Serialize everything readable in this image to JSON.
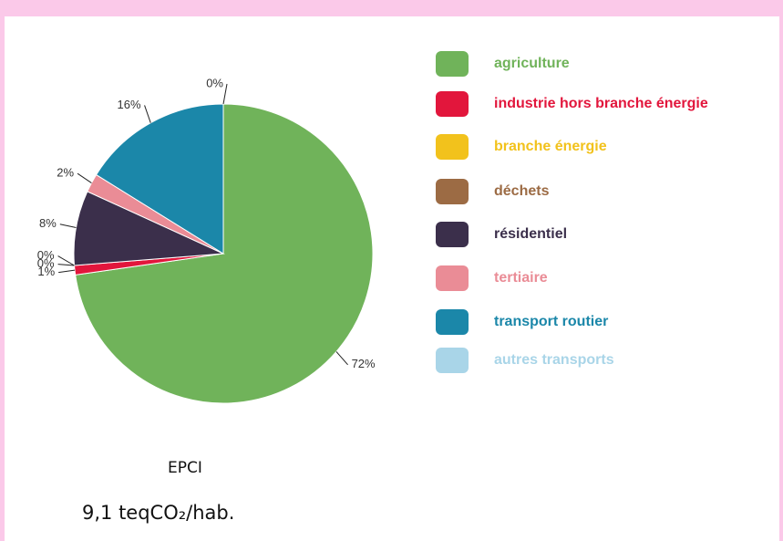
{
  "chart_data": {
    "type": "pie",
    "categories": [
      "agriculture",
      "industrie hors branche énergie",
      "branche énergie",
      "déchets",
      "résidentiel",
      "tertiaire",
      "transport routier",
      "autres transports"
    ],
    "values": [
      72,
      1,
      0,
      0,
      8,
      2,
      16,
      0
    ],
    "value_labels": [
      "72%",
      "1%",
      "0%",
      "0%",
      "8%",
      "2%",
      "16%",
      "0%"
    ],
    "colors": [
      "#70b35a",
      "#e2163c",
      "#f2c21c",
      "#9c6b44",
      "#3b2f4b",
      "#ea8c96",
      "#1b87a9",
      "#a9d5e8"
    ],
    "legend": "right",
    "footer": {
      "name": "EPCI",
      "value_text": "9,1 teqCO₂/hab."
    }
  }
}
